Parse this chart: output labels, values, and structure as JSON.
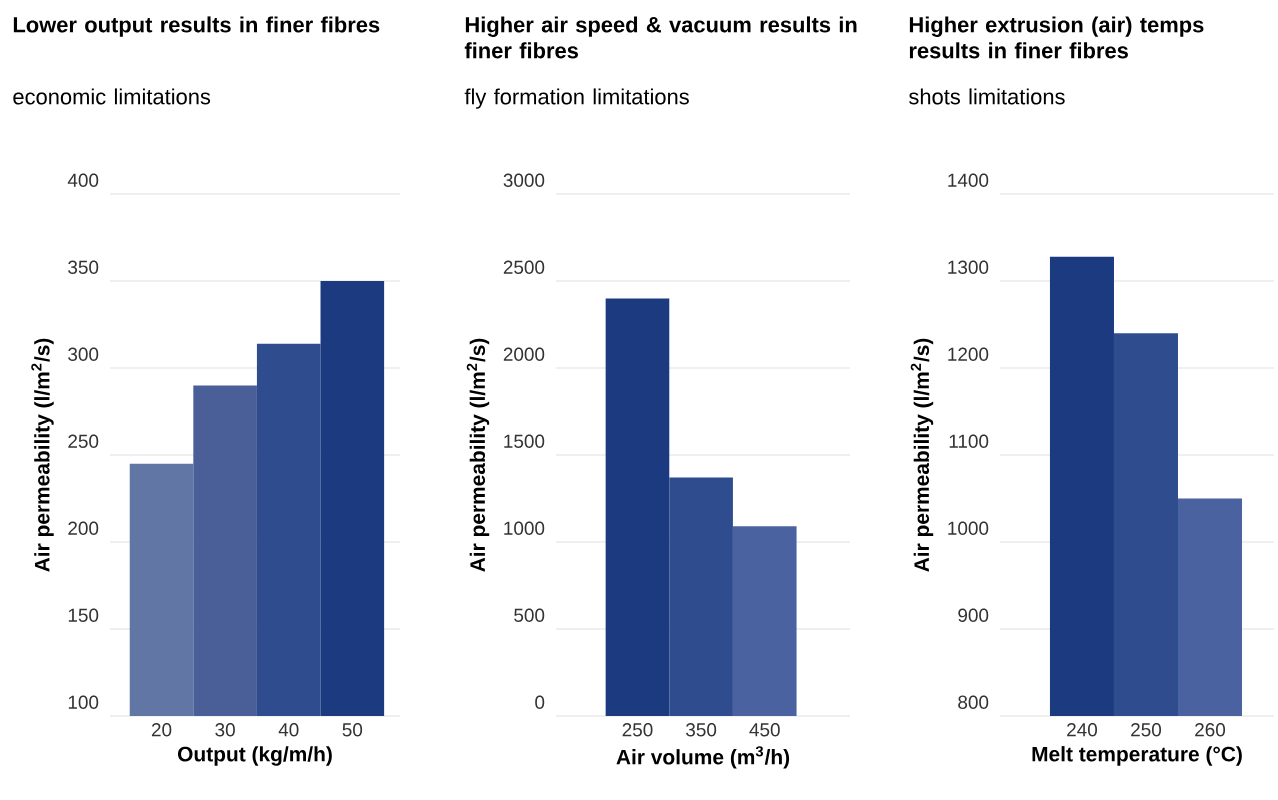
{
  "chart_data": [
    {
      "type": "bar",
      "title": "Lower output results in finer fibres",
      "subtitle": "economic limitations",
      "xlabel": "Output (kg/m/h)",
      "ylabel": "Air permeability (l/m$^{2}$/s)",
      "categories": [
        "20",
        "30",
        "40",
        "50"
      ],
      "values": [
        245,
        290,
        314,
        350
      ],
      "colors": [
        "#6276a6",
        "#4a5f98",
        "#2f4d8e",
        "#1b3a80"
      ],
      "ylim": [
        100,
        400
      ],
      "yticks": [
        100,
        150,
        200,
        250,
        300,
        350,
        400
      ],
      "grid": "y"
    },
    {
      "type": "bar",
      "title": "Higher air speed & vacuum results in finer fibres",
      "subtitle": "fly formation limitations",
      "xlabel": "Air volume (m$^{3}$/h)",
      "ylabel": "Air permeability (l/m$^{2}$/s)",
      "categories": [
        "250",
        "350",
        "450"
      ],
      "values": [
        2400,
        1370,
        1090
      ],
      "colors": [
        "#1b3a80",
        "#2f4d8e",
        "#4a63a0"
      ],
      "ylim": [
        0,
        3000
      ],
      "yticks": [
        0,
        500,
        1000,
        1500,
        2000,
        2500,
        3000
      ],
      "grid": "y"
    },
    {
      "type": "bar",
      "title": "Higher extrusion (air) temps results in finer fibres",
      "subtitle": "shots limitations",
      "xlabel": "Melt temperature (°C)",
      "ylabel": "Air permeability (l/m$^{2}$/s)",
      "categories": [
        "240",
        "250",
        "260"
      ],
      "values": [
        1328,
        1240,
        1050
      ],
      "colors": [
        "#1b3a80",
        "#2f4d8e",
        "#4a63a0"
      ],
      "ylim": [
        800,
        1400
      ],
      "yticks": [
        800,
        900,
        1000,
        1100,
        1200,
        1300,
        1400
      ],
      "grid": "y"
    }
  ]
}
